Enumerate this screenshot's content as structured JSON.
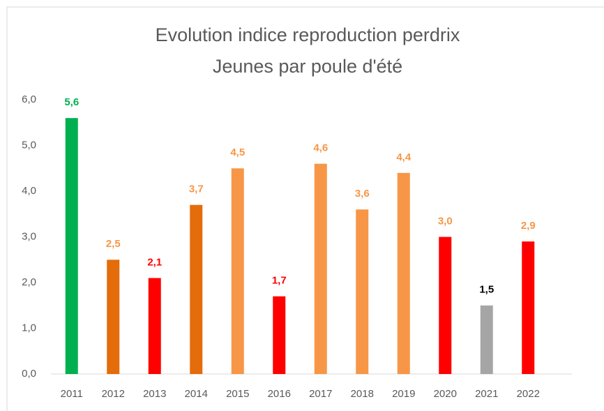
{
  "chart_data": {
    "type": "bar",
    "title": "Evolution indice reproduction perdrix",
    "subtitle": "Jeunes par poule d'été",
    "categories": [
      "2011",
      "2012",
      "2013",
      "2014",
      "2015",
      "2016",
      "2017",
      "2018",
      "2019",
      "2020",
      "2021",
      "2022"
    ],
    "values": [
      5.6,
      2.5,
      2.1,
      3.7,
      4.5,
      1.7,
      4.6,
      3.6,
      4.4,
      3.0,
      1.5,
      2.9
    ],
    "value_labels": [
      "5,6",
      "2,5",
      "2,1",
      "3,7",
      "4,5",
      "1,7",
      "4,6",
      "3,6",
      "4,4",
      "3,0",
      "1,5",
      "2,9"
    ],
    "colors": [
      "#00b050",
      "#e46c0a",
      "#ff0000",
      "#e46c0a",
      "#f79646",
      "#ff0000",
      "#f79646",
      "#f79646",
      "#f79646",
      "#ff0000",
      "#a5a5a5",
      "#ff0000"
    ],
    "label_colors": [
      "#00b050",
      "#f79646",
      "#ff0000",
      "#f79646",
      "#f79646",
      "#ff0000",
      "#f79646",
      "#f79646",
      "#f79646",
      "#f79646",
      "#000000",
      "#f79646"
    ],
    "ylim": [
      0,
      6
    ],
    "yticks": [
      {
        "value": 0,
        "label": "0,0"
      },
      {
        "value": 1,
        "label": "1,0"
      },
      {
        "value": 2,
        "label": "2,0"
      },
      {
        "value": 3,
        "label": "3,0"
      },
      {
        "value": 4,
        "label": "4,0"
      },
      {
        "value": 5,
        "label": "5,0"
      },
      {
        "value": 6,
        "label": "6,0"
      }
    ],
    "grid": false
  }
}
